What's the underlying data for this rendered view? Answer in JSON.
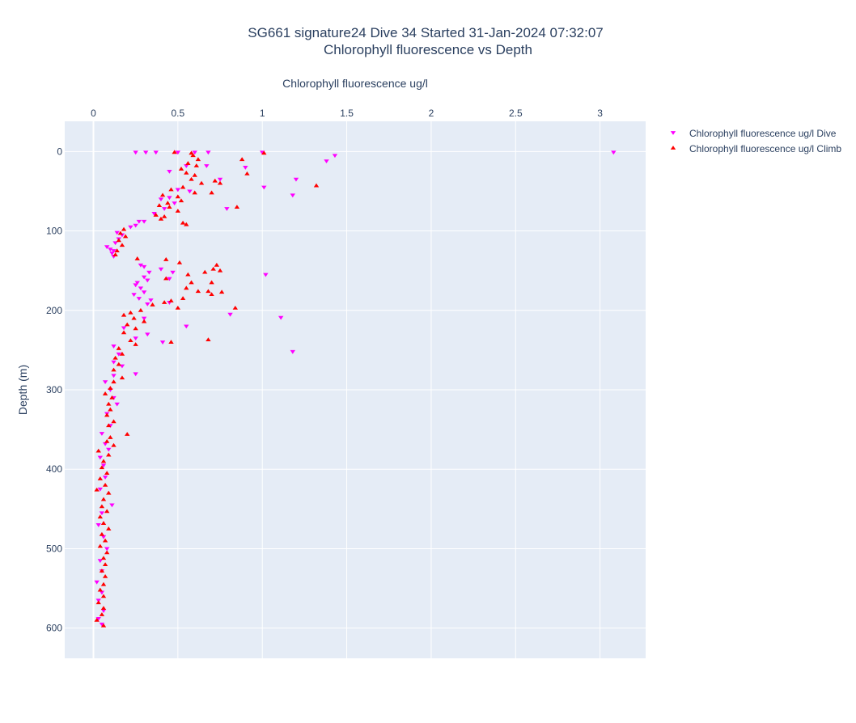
{
  "chart_data": {
    "type": "scatter",
    "title": "SG661 signature24 Dive 34 Started 31-Jan-2024 07:32:07",
    "subtitle": "Chlorophyll fluorescence vs Depth",
    "xlabel": "Chlorophyll fluorescence ug/l",
    "ylabel": "Depth (m)",
    "xlim": [
      -0.17,
      3.27
    ],
    "ylim": [
      638,
      -38
    ],
    "x_ticks": [
      0,
      0.5,
      1,
      1.5,
      2,
      2.5,
      3
    ],
    "x_tick_labels": [
      "0",
      "0.5",
      "1",
      "1.5",
      "2",
      "2.5",
      "3"
    ],
    "y_ticks": [
      0,
      100,
      200,
      300,
      400,
      500,
      600
    ],
    "y_tick_labels": [
      "0",
      "100",
      "200",
      "300",
      "400",
      "500",
      "600"
    ],
    "x_axis_position": "top",
    "y_reversed": true,
    "grid": true,
    "legend_position": "right",
    "series": [
      {
        "name": "Chlorophyll fluorescence ug/l Dive",
        "color": "#ff00ff",
        "marker": "triangle-down",
        "points": [
          [
            0.25,
            1
          ],
          [
            0.31,
            1
          ],
          [
            0.37,
            1
          ],
          [
            0.5,
            1
          ],
          [
            0.6,
            1
          ],
          [
            0.68,
            1
          ],
          [
            1.0,
            1
          ],
          [
            3.08,
            1
          ],
          [
            1.43,
            5
          ],
          [
            1.38,
            12
          ],
          [
            0.55,
            18
          ],
          [
            0.67,
            18
          ],
          [
            0.9,
            20
          ],
          [
            0.45,
            25
          ],
          [
            1.2,
            35
          ],
          [
            0.75,
            35
          ],
          [
            1.01,
            45
          ],
          [
            0.5,
            48
          ],
          [
            0.57,
            50
          ],
          [
            1.18,
            55
          ],
          [
            0.45,
            58
          ],
          [
            0.4,
            60
          ],
          [
            0.48,
            65
          ],
          [
            0.79,
            72
          ],
          [
            0.42,
            72
          ],
          [
            0.36,
            78
          ],
          [
            0.27,
            88
          ],
          [
            0.3,
            88
          ],
          [
            0.25,
            93
          ],
          [
            0.22,
            95
          ],
          [
            0.14,
            102
          ],
          [
            0.17,
            105
          ],
          [
            0.15,
            110
          ],
          [
            0.13,
            115
          ],
          [
            0.08,
            120
          ],
          [
            0.1,
            123
          ],
          [
            0.12,
            125
          ],
          [
            0.11,
            128
          ],
          [
            0.12,
            132
          ],
          [
            0.28,
            143
          ],
          [
            0.3,
            145
          ],
          [
            0.4,
            148
          ],
          [
            0.33,
            152
          ],
          [
            0.47,
            152
          ],
          [
            1.02,
            155
          ],
          [
            0.3,
            158
          ],
          [
            0.45,
            160
          ],
          [
            0.32,
            162
          ],
          [
            0.26,
            165
          ],
          [
            0.25,
            168
          ],
          [
            0.28,
            172
          ],
          [
            0.3,
            177
          ],
          [
            0.24,
            180
          ],
          [
            0.27,
            185
          ],
          [
            0.34,
            187
          ],
          [
            0.45,
            190
          ],
          [
            0.32,
            192
          ],
          [
            0.81,
            205
          ],
          [
            1.11,
            209
          ],
          [
            0.3,
            210
          ],
          [
            0.55,
            220
          ],
          [
            0.18,
            222
          ],
          [
            0.32,
            230
          ],
          [
            0.25,
            235
          ],
          [
            0.41,
            240
          ],
          [
            0.12,
            245
          ],
          [
            1.18,
            252
          ],
          [
            0.15,
            255
          ],
          [
            0.12,
            265
          ],
          [
            0.17,
            270
          ],
          [
            0.25,
            280
          ],
          [
            0.12,
            282
          ],
          [
            0.07,
            290
          ],
          [
            0.1,
            300
          ],
          [
            0.12,
            310
          ],
          [
            0.14,
            318
          ],
          [
            0.08,
            330
          ],
          [
            0.1,
            345
          ],
          [
            0.05,
            355
          ],
          [
            0.07,
            368
          ],
          [
            0.09,
            375
          ],
          [
            0.04,
            385
          ],
          [
            0.06,
            395
          ],
          [
            0.07,
            410
          ],
          [
            0.04,
            425
          ],
          [
            0.11,
            445
          ],
          [
            0.05,
            455
          ],
          [
            0.03,
            470
          ],
          [
            0.06,
            485
          ],
          [
            0.08,
            500
          ],
          [
            0.04,
            515
          ],
          [
            0.05,
            528
          ],
          [
            0.02,
            542
          ],
          [
            0.05,
            555
          ],
          [
            0.03,
            565
          ],
          [
            0.06,
            578
          ],
          [
            0.03,
            588
          ],
          [
            0.05,
            595
          ]
        ]
      },
      {
        "name": "Chlorophyll fluorescence ug/l Climb",
        "color": "#ff0000",
        "marker": "triangle-up",
        "points": [
          [
            0.48,
            1
          ],
          [
            0.58,
            2
          ],
          [
            1.01,
            2
          ],
          [
            0.88,
            10
          ],
          [
            0.59,
            5
          ],
          [
            0.62,
            10
          ],
          [
            0.56,
            15
          ],
          [
            0.61,
            18
          ],
          [
            0.52,
            22
          ],
          [
            0.55,
            27
          ],
          [
            0.6,
            30
          ],
          [
            0.91,
            28
          ],
          [
            0.58,
            35
          ],
          [
            0.72,
            37
          ],
          [
            0.75,
            40
          ],
          [
            0.64,
            40
          ],
          [
            1.32,
            43
          ],
          [
            0.53,
            45
          ],
          [
            0.46,
            48
          ],
          [
            0.7,
            52
          ],
          [
            0.6,
            52
          ],
          [
            0.41,
            55
          ],
          [
            0.5,
            57
          ],
          [
            0.52,
            62
          ],
          [
            0.44,
            65
          ],
          [
            0.39,
            68
          ],
          [
            0.85,
            70
          ],
          [
            0.45,
            70
          ],
          [
            0.5,
            75
          ],
          [
            0.37,
            80
          ],
          [
            0.42,
            82
          ],
          [
            0.4,
            85
          ],
          [
            0.53,
            90
          ],
          [
            0.55,
            92
          ],
          [
            0.18,
            98
          ],
          [
            0.16,
            103
          ],
          [
            0.19,
            107
          ],
          [
            0.15,
            112
          ],
          [
            0.17,
            118
          ],
          [
            0.14,
            125
          ],
          [
            0.13,
            130
          ],
          [
            0.26,
            135
          ],
          [
            0.43,
            136
          ],
          [
            0.51,
            140
          ],
          [
            0.73,
            143
          ],
          [
            0.71,
            148
          ],
          [
            0.75,
            150
          ],
          [
            0.66,
            152
          ],
          [
            0.56,
            155
          ],
          [
            0.43,
            160
          ],
          [
            0.58,
            165
          ],
          [
            0.7,
            165
          ],
          [
            0.55,
            172
          ],
          [
            0.62,
            176
          ],
          [
            0.68,
            176
          ],
          [
            0.76,
            177
          ],
          [
            0.7,
            180
          ],
          [
            0.53,
            185
          ],
          [
            0.46,
            188
          ],
          [
            0.42,
            190
          ],
          [
            0.35,
            193
          ],
          [
            0.5,
            197
          ],
          [
            0.84,
            197
          ],
          [
            0.28,
            200
          ],
          [
            0.22,
            203
          ],
          [
            0.18,
            206
          ],
          [
            0.24,
            210
          ],
          [
            0.3,
            214
          ],
          [
            0.2,
            218
          ],
          [
            0.25,
            223
          ],
          [
            0.18,
            228
          ],
          [
            0.68,
            237
          ],
          [
            0.22,
            238
          ],
          [
            0.46,
            240
          ],
          [
            0.25,
            243
          ],
          [
            0.15,
            248
          ],
          [
            0.17,
            255
          ],
          [
            0.13,
            260
          ],
          [
            0.15,
            268
          ],
          [
            0.12,
            275
          ],
          [
            0.17,
            285
          ],
          [
            0.12,
            290
          ],
          [
            0.1,
            298
          ],
          [
            0.07,
            305
          ],
          [
            0.11,
            310
          ],
          [
            0.09,
            318
          ],
          [
            0.1,
            325
          ],
          [
            0.08,
            332
          ],
          [
            0.12,
            340
          ],
          [
            0.09,
            345
          ],
          [
            0.2,
            356
          ],
          [
            0.1,
            360
          ],
          [
            0.08,
            365
          ],
          [
            0.12,
            370
          ],
          [
            0.03,
            377
          ],
          [
            0.09,
            382
          ],
          [
            0.06,
            390
          ],
          [
            0.05,
            398
          ],
          [
            0.08,
            405
          ],
          [
            0.04,
            412
          ],
          [
            0.07,
            420
          ],
          [
            0.02,
            426
          ],
          [
            0.09,
            430
          ],
          [
            0.06,
            438
          ],
          [
            0.05,
            447
          ],
          [
            0.08,
            453
          ],
          [
            0.04,
            460
          ],
          [
            0.06,
            468
          ],
          [
            0.09,
            475
          ],
          [
            0.05,
            482
          ],
          [
            0.07,
            490
          ],
          [
            0.04,
            497
          ],
          [
            0.08,
            505
          ],
          [
            0.06,
            512
          ],
          [
            0.07,
            520
          ],
          [
            0.05,
            528
          ],
          [
            0.07,
            535
          ],
          [
            0.06,
            545
          ],
          [
            0.04,
            552
          ],
          [
            0.06,
            560
          ],
          [
            0.03,
            568
          ],
          [
            0.06,
            575
          ],
          [
            0.05,
            583
          ],
          [
            0.02,
            590
          ],
          [
            0.06,
            597
          ]
        ]
      }
    ]
  }
}
